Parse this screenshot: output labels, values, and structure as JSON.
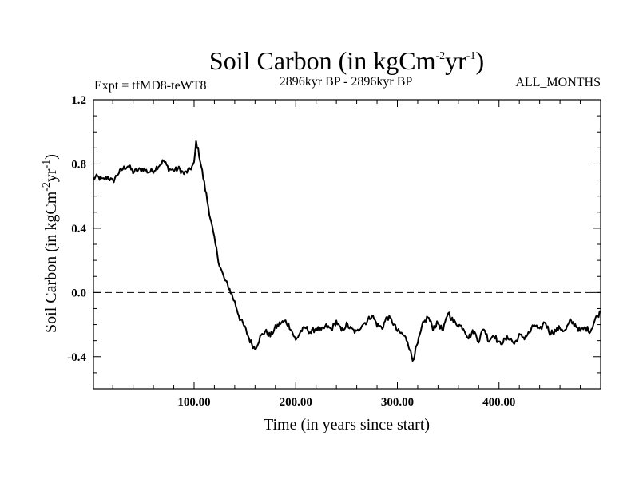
{
  "chart_data": {
    "type": "line",
    "title": {
      "main": "Soil Carbon (in kgCm",
      "exp1": "-2",
      "mid": "yr",
      "exp2": "-1",
      "close": ")"
    },
    "expt_label": "Expt = tfMD8-teWT8",
    "period_label": "2896kyr BP - 2896kyr BP",
    "months_label": "ALL_MONTHS",
    "xlabel": "Time (in years since start)",
    "ylabel": {
      "main": "Soil Carbon (in kgCm",
      "exp1": "-2",
      "mid": "yr",
      "exp2": "-1",
      "close": ")"
    },
    "xlim": [
      1,
      500
    ],
    "ylim": [
      -0.6,
      1.2
    ],
    "x_ticks": [
      {
        "value": 100,
        "label": "100.00"
      },
      {
        "value": 200,
        "label": "200.00"
      },
      {
        "value": 300,
        "label": "300.00"
      },
      {
        "value": 400,
        "label": "400.00"
      }
    ],
    "y_ticks": [
      {
        "value": 1.2,
        "label": "1.2"
      },
      {
        "value": 0.8,
        "label": "0.8"
      },
      {
        "value": 0.4,
        "label": "0.4"
      },
      {
        "value": 0.0,
        "label": "0.0"
      },
      {
        "value": -0.4,
        "label": "-0.4"
      }
    ],
    "reference_line": {
      "y": 0.0,
      "style": "dashed"
    },
    "series": [
      {
        "name": "Soil Carbon",
        "x": [
          1,
          5,
          10,
          15,
          20,
          25,
          30,
          35,
          40,
          45,
          50,
          55,
          60,
          65,
          70,
          75,
          80,
          85,
          90,
          95,
          100,
          102,
          105,
          110,
          115,
          120,
          125,
          130,
          135,
          140,
          145,
          150,
          155,
          160,
          165,
          170,
          175,
          180,
          185,
          190,
          195,
          200,
          205,
          210,
          215,
          220,
          225,
          230,
          235,
          240,
          245,
          250,
          255,
          260,
          265,
          270,
          275,
          280,
          285,
          290,
          295,
          300,
          305,
          310,
          315,
          320,
          325,
          330,
          335,
          340,
          345,
          350,
          355,
          360,
          365,
          370,
          375,
          380,
          385,
          390,
          395,
          400,
          405,
          410,
          415,
          420,
          425,
          430,
          435,
          440,
          445,
          450,
          455,
          460,
          465,
          470,
          475,
          480,
          485,
          490,
          495,
          500
        ],
        "values": [
          0.71,
          0.72,
          0.7,
          0.72,
          0.69,
          0.74,
          0.77,
          0.79,
          0.75,
          0.76,
          0.77,
          0.75,
          0.76,
          0.79,
          0.82,
          0.77,
          0.76,
          0.77,
          0.74,
          0.76,
          0.8,
          0.94,
          0.86,
          0.68,
          0.5,
          0.33,
          0.17,
          0.08,
          0.02,
          -0.06,
          -0.16,
          -0.22,
          -0.3,
          -0.35,
          -0.28,
          -0.24,
          -0.27,
          -0.22,
          -0.19,
          -0.18,
          -0.22,
          -0.3,
          -0.24,
          -0.22,
          -0.25,
          -0.22,
          -0.24,
          -0.21,
          -0.23,
          -0.18,
          -0.24,
          -0.2,
          -0.23,
          -0.25,
          -0.2,
          -0.18,
          -0.14,
          -0.2,
          -0.22,
          -0.15,
          -0.18,
          -0.24,
          -0.26,
          -0.3,
          -0.42,
          -0.32,
          -0.2,
          -0.15,
          -0.22,
          -0.19,
          -0.24,
          -0.12,
          -0.18,
          -0.2,
          -0.22,
          -0.28,
          -0.24,
          -0.3,
          -0.22,
          -0.3,
          -0.26,
          -0.32,
          -0.3,
          -0.28,
          -0.32,
          -0.27,
          -0.28,
          -0.25,
          -0.2,
          -0.24,
          -0.18,
          -0.25,
          -0.24,
          -0.22,
          -0.24,
          -0.18,
          -0.2,
          -0.24,
          -0.22,
          -0.24,
          -0.16,
          -0.12
        ]
      }
    ]
  }
}
